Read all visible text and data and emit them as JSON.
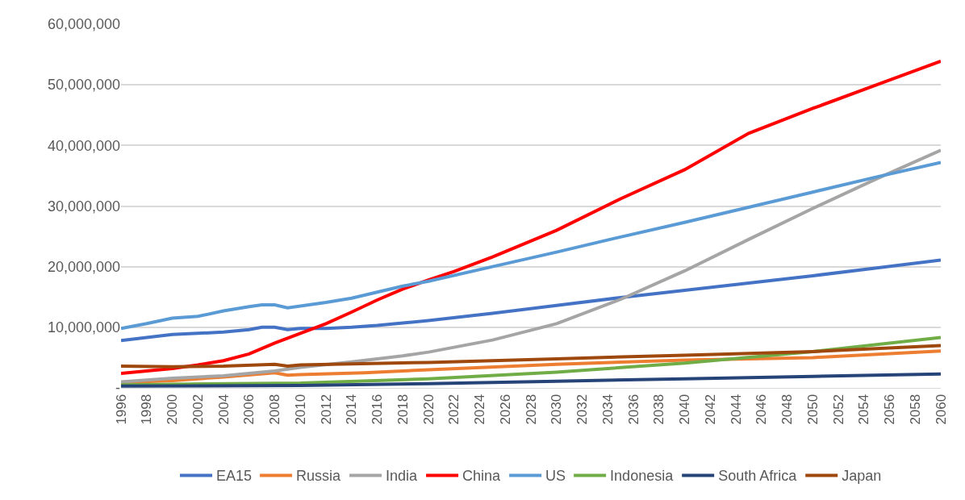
{
  "chart_data": {
    "type": "line",
    "xlim": [
      1996,
      2060
    ],
    "xticks": [
      1996,
      1998,
      2000,
      2002,
      2004,
      2006,
      2008,
      2010,
      2012,
      2014,
      2016,
      2018,
      2020,
      2022,
      2024,
      2026,
      2028,
      2030,
      2032,
      2034,
      2036,
      2038,
      2040,
      2042,
      2044,
      2046,
      2048,
      2050,
      2052,
      2054,
      2056,
      2058,
      2060
    ],
    "ylim": [
      0,
      60000000
    ],
    "yticks": [
      {
        "value": 0,
        "label": "-"
      },
      {
        "value": 10000000,
        "label": "10,000,000"
      },
      {
        "value": 20000000,
        "label": "20,000,000"
      },
      {
        "value": 30000000,
        "label": "30,000,000"
      },
      {
        "value": 40000000,
        "label": "40,000,000"
      },
      {
        "value": 50000000,
        "label": "50,000,000"
      },
      {
        "value": 60000000,
        "label": "60,000,000"
      }
    ],
    "grid": "y",
    "legend": "bottom",
    "marker": "none",
    "line_style": "solid",
    "series": [
      {
        "name": "EA15",
        "color": "#4472c4",
        "x": [
          1996,
          1998,
          2000,
          2002,
          2004,
          2006,
          2007,
          2008,
          2009,
          2010,
          2012,
          2014,
          2016,
          2018,
          2020,
          2025,
          2030,
          2035,
          2040,
          2045,
          2050,
          2055,
          2060
        ],
        "values": [
          7800000,
          8300000,
          8800000,
          9000000,
          9200000,
          9600000,
          10000000,
          10000000,
          9600000,
          9800000,
          9800000,
          10000000,
          10300000,
          10700000,
          11100000,
          12300000,
          13600000,
          14900000,
          16100000,
          17300000,
          18500000,
          19800000,
          21100000
        ]
      },
      {
        "name": "Russia",
        "color": "#ed7d31",
        "x": [
          1996,
          2000,
          2004,
          2008,
          2009,
          2010,
          2015,
          2020,
          2030,
          2040,
          2050,
          2060
        ],
        "values": [
          900000,
          1200000,
          1800000,
          2500000,
          2100000,
          2200000,
          2500000,
          3000000,
          3900000,
          4600000,
          5000000,
          6100000
        ]
      },
      {
        "name": "India",
        "color": "#a5a5a5",
        "x": [
          1996,
          2000,
          2004,
          2008,
          2010,
          2014,
          2018,
          2020,
          2025,
          2030,
          2035,
          2040,
          2045,
          2050,
          2055,
          2060
        ],
        "values": [
          1000000,
          1600000,
          2000000,
          2800000,
          3400000,
          4300000,
          5300000,
          5900000,
          7900000,
          10600000,
          14600000,
          19300000,
          24500000,
          29600000,
          34500000,
          39200000
        ]
      },
      {
        "name": "China",
        "color": "#ff0000",
        "x": [
          1996,
          1998,
          2000,
          2002,
          2004,
          2006,
          2008,
          2010,
          2012,
          2014,
          2016,
          2018,
          2020,
          2022,
          2025,
          2030,
          2035,
          2040,
          2045,
          2050,
          2055,
          2060
        ],
        "values": [
          2400000,
          2800000,
          3200000,
          3800000,
          4500000,
          5600000,
          7400000,
          9000000,
          10600000,
          12500000,
          14500000,
          16300000,
          17800000,
          19200000,
          21600000,
          26000000,
          31200000,
          36000000,
          42000000,
          46100000,
          50000000,
          53900000
        ]
      },
      {
        "name": "US",
        "color": "#5b9bd5",
        "x": [
          1996,
          1998,
          2000,
          2002,
          2004,
          2006,
          2007,
          2008,
          2009,
          2010,
          2012,
          2014,
          2016,
          2018,
          2020,
          2025,
          2030,
          2035,
          2040,
          2045,
          2050,
          2055,
          2060
        ],
        "values": [
          9800000,
          10600000,
          11500000,
          11800000,
          12700000,
          13400000,
          13700000,
          13700000,
          13200000,
          13500000,
          14100000,
          14800000,
          15800000,
          16800000,
          17600000,
          20000000,
          22400000,
          24900000,
          27300000,
          29800000,
          32300000,
          34800000,
          37200000
        ]
      },
      {
        "name": "Indonesia",
        "color": "#70ad47",
        "x": [
          1996,
          2000,
          2010,
          2020,
          2030,
          2040,
          2050,
          2060
        ],
        "values": [
          500000,
          600000,
          800000,
          1500000,
          2600000,
          4100000,
          6000000,
          8300000
        ]
      },
      {
        "name": "South Africa",
        "color": "#264478",
        "x": [
          1996,
          2010,
          2020,
          2030,
          2040,
          2050,
          2060
        ],
        "values": [
          300000,
          400000,
          700000,
          1100000,
          1500000,
          1900000,
          2300000
        ]
      },
      {
        "name": "Japan",
        "color": "#9e480e",
        "x": [
          1996,
          2000,
          2004,
          2008,
          2009,
          2010,
          2020,
          2030,
          2040,
          2050,
          2060
        ],
        "values": [
          3600000,
          3500000,
          3600000,
          3900000,
          3600000,
          3800000,
          4200000,
          4800000,
          5400000,
          6000000,
          7000000
        ]
      }
    ]
  }
}
